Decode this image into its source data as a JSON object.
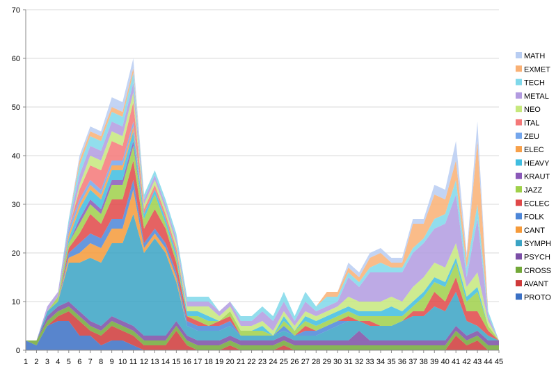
{
  "chart_data": {
    "type": "area",
    "stacked": true,
    "title": "",
    "xlabel": "",
    "ylabel": "",
    "ylim": [
      0,
      70
    ],
    "yticks": [
      0,
      10,
      20,
      30,
      40,
      50,
      60,
      70
    ],
    "grid": "horizontal",
    "legend_placement": "right",
    "x": [
      1,
      2,
      3,
      4,
      5,
      6,
      7,
      8,
      9,
      10,
      11,
      12,
      13,
      14,
      15,
      16,
      17,
      18,
      19,
      20,
      21,
      22,
      23,
      24,
      25,
      26,
      27,
      28,
      29,
      30,
      31,
      32,
      33,
      34,
      35,
      36,
      37,
      38,
      39,
      40,
      41,
      42,
      43,
      44,
      45
    ],
    "series": [
      {
        "name": "PROTO",
        "color": "#3b70c4",
        "values": [
          2,
          1,
          5,
          6,
          6,
          3,
          3,
          1,
          2,
          2,
          1,
          0,
          0,
          0,
          0,
          0,
          0,
          0,
          0,
          0,
          0,
          0,
          0,
          0,
          0,
          0,
          0,
          0,
          0,
          0,
          0,
          0,
          0,
          0,
          0,
          0,
          0,
          0,
          0,
          0,
          0,
          0,
          0,
          0,
          0
        ]
      },
      {
        "name": "AVANT",
        "color": "#cf3a3a",
        "values": [
          0,
          0,
          0,
          1,
          2,
          3,
          1,
          2,
          3,
          2,
          2,
          1,
          1,
          1,
          4,
          1,
          0,
          0,
          0,
          1,
          0,
          0,
          0,
          0,
          1,
          0,
          0,
          0,
          0,
          0,
          0,
          0,
          0,
          0,
          0,
          0,
          0,
          0,
          0,
          0,
          3,
          1,
          2,
          0,
          0
        ]
      },
      {
        "name": "CROSS",
        "color": "#72a838",
        "values": [
          0,
          1,
          1,
          1,
          1,
          1,
          1,
          1,
          1,
          1,
          1,
          1,
          1,
          1,
          1,
          1,
          1,
          1,
          1,
          1,
          1,
          1,
          1,
          1,
          1,
          1,
          1,
          1,
          1,
          1,
          1,
          1,
          1,
          1,
          1,
          1,
          1,
          1,
          1,
          1,
          1,
          1,
          1,
          1,
          1
        ]
      },
      {
        "name": "PSYCH",
        "color": "#7b4ea6",
        "values": [
          0,
          0,
          1,
          1,
          1,
          1,
          1,
          1,
          1,
          1,
          1,
          1,
          1,
          1,
          1,
          1,
          1,
          1,
          1,
          1,
          1,
          1,
          1,
          1,
          1,
          1,
          1,
          1,
          1,
          1,
          1,
          3,
          1,
          1,
          1,
          1,
          1,
          1,
          1,
          1,
          1,
          1,
          1,
          1,
          1
        ]
      },
      {
        "name": "SYMPH",
        "color": "#3aa3c4",
        "values": [
          0,
          0,
          1,
          1,
          8,
          10,
          13,
          13,
          15,
          16,
          23,
          17,
          20,
          17,
          8,
          2,
          2,
          2,
          2,
          2,
          1,
          1,
          1,
          1,
          1,
          1,
          1,
          1,
          2,
          3,
          4,
          2,
          3,
          3,
          3,
          4,
          5,
          5,
          7,
          6,
          7,
          3,
          1,
          1,
          0
        ]
      },
      {
        "name": "CANT",
        "color": "#f59a3a",
        "values": [
          0,
          0,
          0,
          0,
          1,
          2,
          3,
          3,
          3,
          3,
          5,
          1,
          1,
          1,
          1,
          0,
          0,
          0,
          0,
          0,
          0,
          0,
          0,
          0,
          0,
          0,
          0,
          0,
          0,
          0,
          0,
          0,
          0,
          0,
          0,
          0,
          0,
          0,
          0,
          0,
          0,
          0,
          0,
          0,
          0
        ]
      },
      {
        "name": "FOLK",
        "color": "#4c86d8",
        "values": [
          0,
          0,
          0,
          0,
          1,
          2,
          2,
          2,
          2,
          2,
          2,
          1,
          1,
          1,
          1,
          1,
          1,
          1,
          1,
          1,
          0,
          0,
          0,
          0,
          1,
          0,
          1,
          1,
          1,
          1,
          0,
          0,
          0,
          0,
          0,
          0,
          0,
          0,
          0,
          0,
          0,
          0,
          0,
          0,
          0
        ]
      },
      {
        "name": "ECLEC",
        "color": "#e04848",
        "values": [
          0,
          0,
          0,
          0,
          1,
          2,
          4,
          3,
          4,
          4,
          4,
          3,
          4,
          3,
          2,
          1,
          1,
          0,
          1,
          1,
          0,
          0,
          0,
          0,
          0,
          0,
          1,
          0,
          0,
          0,
          1,
          0,
          1,
          0,
          0,
          0,
          1,
          1,
          3,
          2,
          3,
          2,
          3,
          1,
          0
        ]
      },
      {
        "name": "JAZZ",
        "color": "#9fd04a",
        "values": [
          0,
          0,
          0,
          1,
          1,
          2,
          2,
          2,
          3,
          3,
          3,
          2,
          3,
          1,
          1,
          0,
          1,
          1,
          0,
          1,
          1,
          1,
          1,
          0,
          1,
          1,
          1,
          1,
          1,
          1,
          1,
          1,
          1,
          2,
          2,
          1,
          1,
          3,
          2,
          3,
          3,
          2,
          4,
          1,
          0
        ]
      },
      {
        "name": "KRAUT",
        "color": "#8a58b8",
        "values": [
          0,
          0,
          0,
          0,
          0,
          1,
          1,
          1,
          1,
          1,
          1,
          0,
          0,
          0,
          0,
          0,
          0,
          0,
          0,
          0,
          0,
          0,
          0,
          0,
          0,
          0,
          0,
          0,
          0,
          0,
          0,
          0,
          0,
          0,
          0,
          0,
          0,
          0,
          0,
          0,
          0,
          0,
          0,
          0,
          0
        ]
      },
      {
        "name": "HEAVY",
        "color": "#40bde0",
        "values": [
          0,
          0,
          0,
          0,
          1,
          2,
          2,
          2,
          2,
          2,
          2,
          1,
          1,
          1,
          1,
          1,
          1,
          1,
          0,
          0,
          0,
          0,
          1,
          0,
          1,
          0,
          1,
          1,
          1,
          1,
          1,
          1,
          1,
          1,
          2,
          1,
          1,
          1,
          1,
          1,
          1,
          1,
          1,
          0,
          0
        ]
      },
      {
        "name": "ELEC",
        "color": "#f7a04a",
        "values": [
          0,
          0,
          0,
          0,
          1,
          1,
          1,
          1,
          1,
          1,
          1,
          0,
          0,
          0,
          0,
          0,
          0,
          0,
          0,
          0,
          0,
          0,
          0,
          0,
          0,
          0,
          0,
          0,
          0,
          0,
          0,
          0,
          0,
          0,
          0,
          0,
          0,
          0,
          0,
          0,
          0,
          0,
          0,
          0,
          0
        ]
      },
      {
        "name": "ZEU",
        "color": "#74a6ec",
        "values": [
          0,
          0,
          0,
          0,
          1,
          1,
          1,
          1,
          1,
          1,
          1,
          0,
          0,
          0,
          0,
          0,
          0,
          0,
          0,
          0,
          0,
          0,
          0,
          0,
          0,
          0,
          0,
          0,
          0,
          0,
          0,
          0,
          0,
          0,
          0,
          0,
          0,
          0,
          0,
          0,
          0,
          0,
          0,
          0,
          0
        ]
      },
      {
        "name": "ITAL",
        "color": "#f47878",
        "values": [
          0,
          0,
          0,
          0,
          0,
          2,
          3,
          4,
          4,
          3,
          4,
          1,
          1,
          1,
          1,
          0,
          0,
          0,
          0,
          0,
          0,
          0,
          0,
          0,
          0,
          0,
          0,
          0,
          0,
          0,
          0,
          0,
          0,
          0,
          0,
          0,
          0,
          0,
          0,
          0,
          0,
          0,
          0,
          0,
          0
        ]
      },
      {
        "name": "NEO",
        "color": "#c6e87c",
        "values": [
          0,
          0,
          0,
          0,
          0,
          1,
          2,
          2,
          2,
          2,
          2,
          1,
          1,
          1,
          1,
          1,
          1,
          2,
          1,
          1,
          1,
          1,
          1,
          1,
          1,
          1,
          1,
          1,
          1,
          1,
          2,
          2,
          2,
          2,
          2,
          2,
          3,
          3,
          3,
          3,
          3,
          2,
          3,
          1,
          0
        ]
      },
      {
        "name": "METAL",
        "color": "#b29be0",
        "values": [
          0,
          0,
          1,
          1,
          1,
          2,
          2,
          2,
          2,
          2,
          2,
          1,
          1,
          1,
          1,
          1,
          1,
          1,
          1,
          1,
          1,
          1,
          2,
          2,
          2,
          1,
          2,
          1,
          1,
          1,
          4,
          3,
          6,
          6,
          5,
          6,
          7,
          7,
          7,
          9,
          10,
          2,
          11,
          1,
          0
        ]
      },
      {
        "name": "TECH",
        "color": "#7fd8ea",
        "values": [
          0,
          0,
          0,
          0,
          1,
          2,
          2,
          2,
          2,
          2,
          2,
          1,
          1,
          1,
          1,
          1,
          1,
          1,
          0,
          0,
          1,
          1,
          1,
          1,
          2,
          1,
          2,
          1,
          2,
          1,
          1,
          1,
          1,
          2,
          1,
          1,
          1,
          1,
          2,
          2,
          3,
          2,
          3,
          1,
          0
        ]
      },
      {
        "name": "EXMET",
        "color": "#f9b074",
        "values": [
          0,
          0,
          0,
          0,
          0,
          1,
          1,
          1,
          1,
          1,
          1,
          0,
          0,
          0,
          0,
          0,
          0,
          0,
          0,
          0,
          0,
          0,
          0,
          0,
          0,
          0,
          0,
          0,
          1,
          1,
          1,
          1,
          2,
          2,
          1,
          1,
          5,
          3,
          5,
          3,
          4,
          2,
          13,
          0,
          0
        ]
      },
      {
        "name": "MATH",
        "color": "#b8cdf2",
        "values": [
          0,
          0,
          0,
          0,
          0,
          1,
          1,
          1,
          2,
          2,
          2,
          0,
          0,
          0,
          0,
          0,
          0,
          0,
          0,
          0,
          0,
          0,
          0,
          0,
          0,
          0,
          0,
          0,
          0,
          0,
          1,
          1,
          1,
          1,
          1,
          1,
          1,
          1,
          2,
          2,
          4,
          1,
          4,
          0,
          0
        ]
      }
    ]
  }
}
